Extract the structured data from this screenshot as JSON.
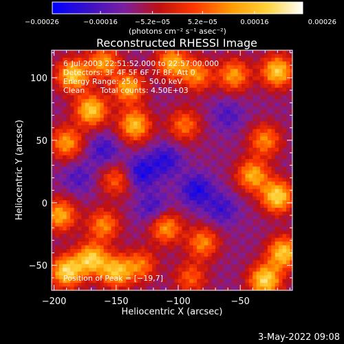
{
  "chart_data": {
    "type": "heatmap",
    "title": "Reconstructed RHESSI Image",
    "xlabel": "Heliocentric X (arcsec)",
    "ylabel": "Heliocentric Y (arcsec)",
    "xlim": [
      -202,
      -8
    ],
    "ylim": [
      -70,
      122
    ],
    "x_ticks": [
      -200,
      -150,
      -100,
      -50
    ],
    "y_ticks": [
      -50,
      0,
      50,
      100
    ],
    "x_tick_labels": [
      "−200",
      "−150",
      "−100",
      "−50"
    ],
    "y_tick_labels": [
      "−50",
      "0",
      "50",
      "100"
    ],
    "colorbar": {
      "range": [
        -0.00026,
        0.00026
      ],
      "tick_values": [
        -0.00026,
        -0.00016,
        -5.2e-05,
        5.2e-05,
        0.00016,
        0.00026
      ],
      "tick_labels": [
        "−0.00026",
        "−0.00016",
        "−5.2e−05",
        "5.2e−05",
        "0.00016",
        "0.00026"
      ],
      "unit_label": "(photons cm⁻² s⁻¹ asec⁻²)",
      "colors": [
        "#0000ff",
        "#3a10c8",
        "#7a1fa0",
        "#c01010",
        "#ff3a00",
        "#ff9a00",
        "#ffd23a",
        "#ffffff"
      ]
    },
    "annotations": {
      "time_range": "6-Jul-2003 22:51:52.000 to 22:57:00.000",
      "detectors": "Detectors: 3F 4F 5F 6F 7F 8F, Att 0",
      "energy": "Energy Range: 25.0 − 50.0 keV",
      "method": "Clean",
      "counts": "Total counts: 4.50E+03",
      "peak": "Position of Peak = [−19,7]"
    },
    "hot_spots": [
      {
        "x": -185,
        "y": 102,
        "v": 0.00024
      },
      {
        "x": -160,
        "y": 112,
        "v": 0.00018
      },
      {
        "x": -170,
        "y": 74,
        "v": 0.00024
      },
      {
        "x": -140,
        "y": 92,
        "v": 0.0002
      },
      {
        "x": -135,
        "y": 62,
        "v": 0.00022
      },
      {
        "x": -105,
        "y": 112,
        "v": 0.0002
      },
      {
        "x": -85,
        "y": 102,
        "v": 0.00016
      },
      {
        "x": -55,
        "y": 102,
        "v": 0.00018
      },
      {
        "x": -20,
        "y": 105,
        "v": 0.00024
      },
      {
        "x": -95,
        "y": 62,
        "v": 0.00014
      },
      {
        "x": -190,
        "y": 48,
        "v": 0.00018
      },
      {
        "x": -30,
        "y": 50,
        "v": 0.00016
      },
      {
        "x": -40,
        "y": 22,
        "v": 0.0002
      },
      {
        "x": -20,
        "y": 5,
        "v": 0.00026
      },
      {
        "x": -15,
        "y": -40,
        "v": 0.00024
      },
      {
        "x": -30,
        "y": -62,
        "v": 0.00026
      },
      {
        "x": -195,
        "y": -10,
        "v": 0.0002
      },
      {
        "x": -190,
        "y": -55,
        "v": 0.00026
      },
      {
        "x": -170,
        "y": -45,
        "v": 0.00024
      },
      {
        "x": -150,
        "y": -55,
        "v": 0.00022
      },
      {
        "x": -160,
        "y": -18,
        "v": 0.00016
      },
      {
        "x": -110,
        "y": -20,
        "v": 0.00018
      },
      {
        "x": -80,
        "y": -32,
        "v": 0.00016
      },
      {
        "x": -130,
        "y": -50,
        "v": 0.00014
      },
      {
        "x": -90,
        "y": -60,
        "v": 0.00012
      },
      {
        "x": -150,
        "y": 18,
        "v": 0.00012
      }
    ],
    "cold_spots": [
      {
        "x": -130,
        "y": 24,
        "v": -0.00016
      },
      {
        "x": -110,
        "y": 34,
        "v": -0.00014
      },
      {
        "x": -85,
        "y": 10,
        "v": -0.00016
      },
      {
        "x": -160,
        "y": 42,
        "v": -0.00012
      },
      {
        "x": -65,
        "y": -5,
        "v": -0.00012
      },
      {
        "x": -120,
        "y": -5,
        "v": -0.00012
      },
      {
        "x": -180,
        "y": 20,
        "v": -0.0001
      },
      {
        "x": -60,
        "y": 70,
        "v": -0.0001
      }
    ]
  },
  "footer": {
    "date": "3-May-2022 09:08"
  }
}
